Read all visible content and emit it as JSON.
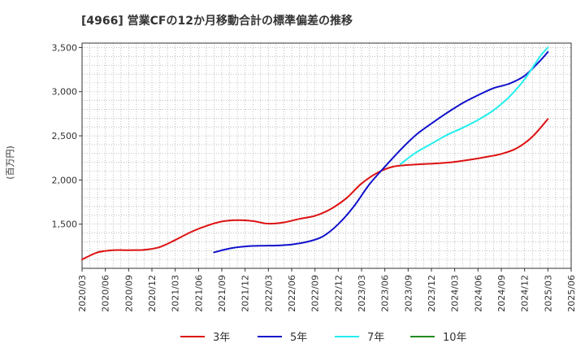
{
  "chart_data": {
    "type": "line",
    "title": "[4966]  営業CFの12か月移動合計の標準偏差の推移",
    "ylabel": "(百万円)",
    "xlabel": "",
    "ylim": [
      1000,
      3550
    ],
    "yticks": [
      1500,
      2000,
      2500,
      3000,
      3500
    ],
    "ytick_labels": [
      "1,500",
      "2,000",
      "2,500",
      "3,000",
      "3,500"
    ],
    "x_range": [
      "2020/03",
      "2025/06"
    ],
    "xtick_labels": [
      "2020/03",
      "2020/06",
      "2020/09",
      "2020/12",
      "2021/03",
      "2021/06",
      "2021/09",
      "2021/12",
      "2022/03",
      "2022/06",
      "2022/09",
      "2022/12",
      "2023/03",
      "2023/06",
      "2023/09",
      "2023/12",
      "2024/03",
      "2024/06",
      "2024/09",
      "2024/12",
      "2025/03",
      "2025/06"
    ],
    "grid": true,
    "legend_position": "bottom",
    "series": [
      {
        "name": "3年",
        "color": "#dd1111",
        "x": [
          "2020/03",
          "2020/05",
          "2020/07",
          "2020/09",
          "2020/11",
          "2021/01",
          "2021/03",
          "2021/05",
          "2021/07",
          "2021/09",
          "2021/11",
          "2022/01",
          "2022/03",
          "2022/05",
          "2022/07",
          "2022/09",
          "2022/11",
          "2023/01",
          "2023/03",
          "2023/05",
          "2023/07",
          "2023/09",
          "2023/11",
          "2024/01",
          "2024/03",
          "2024/05",
          "2024/07",
          "2024/09",
          "2024/11",
          "2025/01",
          "2025/03"
        ],
        "values": [
          1100,
          1180,
          1205,
          1205,
          1210,
          1240,
          1320,
          1410,
          1480,
          1530,
          1545,
          1535,
          1505,
          1520,
          1560,
          1595,
          1670,
          1790,
          1960,
          2080,
          2150,
          2170,
          2180,
          2190,
          2205,
          2230,
          2260,
          2295,
          2360,
          2490,
          2690
        ]
      },
      {
        "name": "5年",
        "color": "#1010cc",
        "x": [
          "2021/08",
          "2021/10",
          "2021/12",
          "2022/02",
          "2022/04",
          "2022/06",
          "2022/08",
          "2022/10",
          "2022/12",
          "2023/02",
          "2023/04",
          "2023/06",
          "2023/08",
          "2023/10",
          "2023/12",
          "2024/02",
          "2024/04",
          "2024/06",
          "2024/08",
          "2024/10",
          "2024/12",
          "2025/02",
          "2025/03"
        ],
        "values": [
          1180,
          1225,
          1248,
          1255,
          1258,
          1270,
          1300,
          1360,
          1500,
          1700,
          1950,
          2150,
          2340,
          2510,
          2640,
          2760,
          2870,
          2960,
          3040,
          3090,
          3180,
          3350,
          3450
        ]
      },
      {
        "name": "7年",
        "color": "#22eeee",
        "x": [
          "2023/08",
          "2023/10",
          "2023/12",
          "2024/02",
          "2024/04",
          "2024/06",
          "2024/08",
          "2024/10",
          "2024/12",
          "2025/02",
          "2025/03"
        ],
        "values": [
          2180,
          2310,
          2410,
          2510,
          2590,
          2680,
          2790,
          2940,
          3140,
          3400,
          3500
        ]
      },
      {
        "name": "10年",
        "color": "#228b22",
        "x": [],
        "values": []
      }
    ]
  }
}
